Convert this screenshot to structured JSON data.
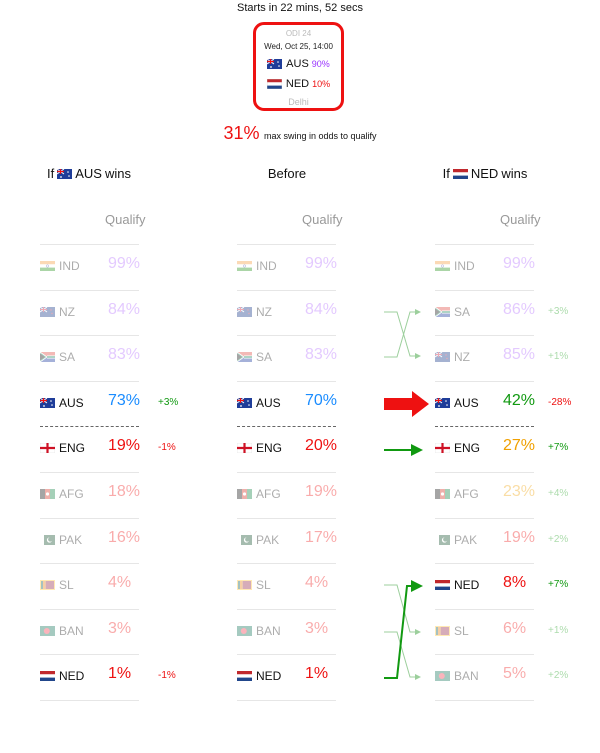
{
  "countdown": "Starts in 22 mins, 52 secs",
  "match": {
    "label": "ODI 24",
    "date": "Wed, Oct 25, 14:00",
    "team1": {
      "name": "AUS",
      "prob": "90%",
      "color": "#9933ff"
    },
    "team2": {
      "name": "NED",
      "prob": "10%",
      "color": "#ee1111"
    },
    "venue": "Delhi"
  },
  "swing": {
    "value": "31%",
    "text": "max swing in odds to qualify"
  },
  "headers": {
    "left": {
      "prefix": "If",
      "team": "AUS",
      "suffix": "wins"
    },
    "middle": "Before",
    "right": {
      "prefix": "If",
      "team": "NED",
      "suffix": "wins"
    },
    "qualify": "Qualify"
  },
  "columns": {
    "left": [
      {
        "team": "IND",
        "flag": "IND",
        "pct": "99%",
        "color": "#b066ff",
        "faded": true,
        "delta": ""
      },
      {
        "team": "NZ",
        "flag": "NZ",
        "pct": "84%",
        "color": "#b066ff",
        "faded": true,
        "delta": ""
      },
      {
        "team": "SA",
        "flag": "SA",
        "pct": "83%",
        "color": "#b066ff",
        "faded": true,
        "delta": ""
      },
      {
        "team": "AUS",
        "flag": "AUS",
        "pct": "73%",
        "color": "#1a8cff",
        "faded": false,
        "delta": "+3%",
        "delta_color": "#119911"
      },
      {
        "team": "ENG",
        "flag": "ENG",
        "pct": "19%",
        "color": "#ee1111",
        "faded": false,
        "delta": "-1%",
        "delta_color": "#ee1111"
      },
      {
        "team": "AFG",
        "flag": "AFG",
        "pct": "18%",
        "color": "#ee1111",
        "faded": true,
        "delta": ""
      },
      {
        "team": "PAK",
        "flag": "PAK",
        "pct": "16%",
        "color": "#ee1111",
        "faded": true,
        "delta": ""
      },
      {
        "team": "SL",
        "flag": "SL",
        "pct": "4%",
        "color": "#ee1111",
        "faded": true,
        "delta": ""
      },
      {
        "team": "BAN",
        "flag": "BAN",
        "pct": "3%",
        "color": "#ee1111",
        "faded": true,
        "delta": ""
      },
      {
        "team": "NED",
        "flag": "NED",
        "pct": "1%",
        "color": "#ee1111",
        "faded": false,
        "delta": "-1%",
        "delta_color": "#ee1111"
      }
    ],
    "middle": [
      {
        "team": "IND",
        "flag": "IND",
        "pct": "99%",
        "color": "#b066ff",
        "faded": true,
        "delta": ""
      },
      {
        "team": "NZ",
        "flag": "NZ",
        "pct": "84%",
        "color": "#b066ff",
        "faded": true,
        "delta": ""
      },
      {
        "team": "SA",
        "flag": "SA",
        "pct": "83%",
        "color": "#b066ff",
        "faded": true,
        "delta": ""
      },
      {
        "team": "AUS",
        "flag": "AUS",
        "pct": "70%",
        "color": "#1a8cff",
        "faded": false,
        "delta": ""
      },
      {
        "team": "ENG",
        "flag": "ENG",
        "pct": "20%",
        "color": "#ee1111",
        "faded": false,
        "delta": ""
      },
      {
        "team": "AFG",
        "flag": "AFG",
        "pct": "19%",
        "color": "#ee1111",
        "faded": true,
        "delta": ""
      },
      {
        "team": "PAK",
        "flag": "PAK",
        "pct": "17%",
        "color": "#ee1111",
        "faded": true,
        "delta": ""
      },
      {
        "team": "SL",
        "flag": "SL",
        "pct": "4%",
        "color": "#ee1111",
        "faded": true,
        "delta": ""
      },
      {
        "team": "BAN",
        "flag": "BAN",
        "pct": "3%",
        "color": "#ee1111",
        "faded": true,
        "delta": ""
      },
      {
        "team": "NED",
        "flag": "NED",
        "pct": "1%",
        "color": "#ee1111",
        "faded": false,
        "delta": ""
      }
    ],
    "right": [
      {
        "team": "IND",
        "flag": "IND",
        "pct": "99%",
        "color": "#b066ff",
        "faded": true,
        "delta": ""
      },
      {
        "team": "SA",
        "flag": "SA",
        "pct": "86%",
        "color": "#b066ff",
        "faded": true,
        "delta": "+3%",
        "delta_color": "#119911"
      },
      {
        "team": "NZ",
        "flag": "NZ",
        "pct": "85%",
        "color": "#b066ff",
        "faded": true,
        "delta": "+1%",
        "delta_color": "#119911"
      },
      {
        "team": "AUS",
        "flag": "AUS",
        "pct": "42%",
        "color": "#119911",
        "faded": false,
        "delta": "-28%",
        "delta_color": "#ee1111"
      },
      {
        "team": "ENG",
        "flag": "ENG",
        "pct": "27%",
        "color": "#f0a000",
        "faded": false,
        "delta": "+7%",
        "delta_color": "#119911"
      },
      {
        "team": "AFG",
        "flag": "AFG",
        "pct": "23%",
        "color": "#f0a000",
        "faded": true,
        "delta": "+4%",
        "delta_color": "#119911"
      },
      {
        "team": "PAK",
        "flag": "PAK",
        "pct": "19%",
        "color": "#ee1111",
        "faded": true,
        "delta": "+2%",
        "delta_color": "#119911"
      },
      {
        "team": "NED",
        "flag": "NED",
        "pct": "8%",
        "color": "#ee1111",
        "faded": false,
        "delta": "+7%",
        "delta_color": "#119911"
      },
      {
        "team": "SL",
        "flag": "SL",
        "pct": "6%",
        "color": "#ee1111",
        "faded": true,
        "delta": "+1%",
        "delta_color": "#119911"
      },
      {
        "team": "BAN",
        "flag": "BAN",
        "pct": "5%",
        "color": "#ee1111",
        "faded": true,
        "delta": "+2%",
        "delta_color": "#119911"
      }
    ]
  }
}
